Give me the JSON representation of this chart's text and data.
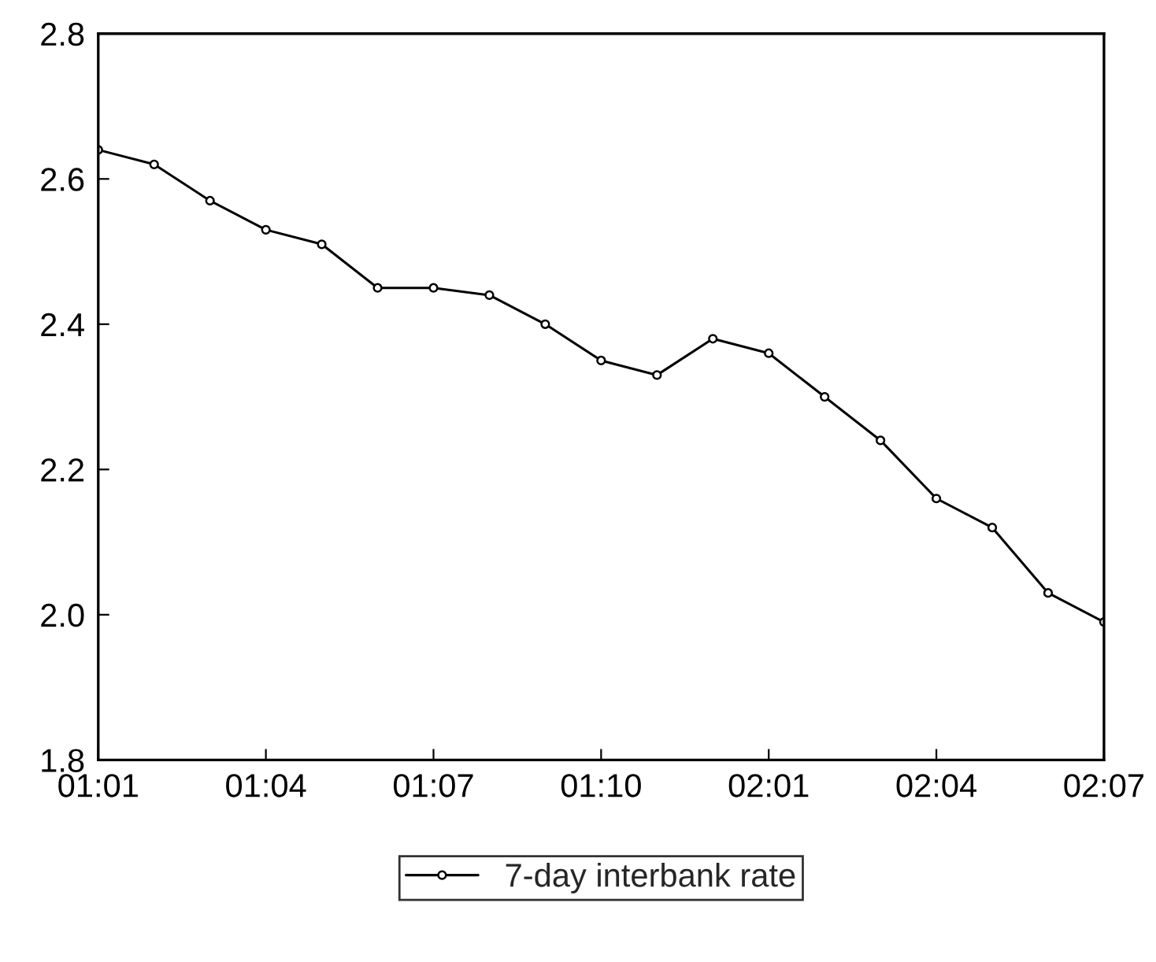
{
  "chart_data": {
    "type": "line",
    "categories": [
      "01:01",
      null,
      null,
      "01:04",
      null,
      null,
      "01:07",
      null,
      null,
      "01:10",
      null,
      null,
      "02:01",
      null,
      null,
      "02:04",
      null,
      null,
      "02:07"
    ],
    "series": [
      {
        "name": "7-day interbank rate",
        "color": "#000000",
        "values": [
          2.64,
          2.62,
          2.57,
          2.53,
          2.51,
          2.45,
          2.45,
          2.44,
          2.4,
          2.35,
          2.33,
          2.38,
          2.36,
          2.3,
          2.24,
          2.16,
          2.12,
          2.03,
          1.99
        ]
      }
    ],
    "ylim": [
      1.8,
      2.8
    ],
    "yticks": [
      {
        "value": 1.8,
        "label": "1.8"
      },
      {
        "value": 2.0,
        "label": "2.0"
      },
      {
        "value": 2.2,
        "label": "2.2"
      },
      {
        "value": 2.4,
        "label": "2.4"
      },
      {
        "value": 2.6,
        "label": "2.6"
      },
      {
        "value": 2.8,
        "label": "2.8"
      }
    ],
    "grid": false,
    "legend": "bottom",
    "marker": "circle",
    "line_style": "solid"
  }
}
